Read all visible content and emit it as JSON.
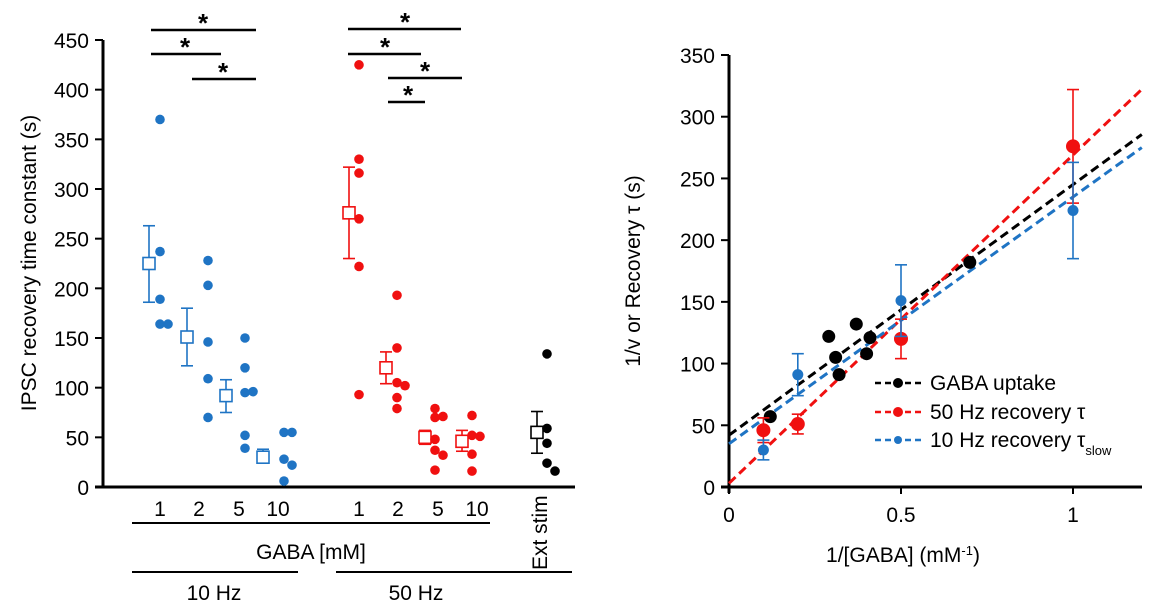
{
  "chart_data": [
    {
      "type": "scatter",
      "title": "",
      "ylabel": "IPSC recovery time constant (s)",
      "ylim": [
        0,
        450
      ],
      "yticks": [
        0,
        50,
        100,
        150,
        200,
        250,
        300,
        350,
        400,
        450
      ],
      "xlabel": "GABA [mM]",
      "group_labels": [
        "10 Hz",
        "50 Hz"
      ],
      "ext_label": "Ext stim",
      "groups": [
        {
          "name": "10 Hz",
          "color": "#1f74c4",
          "conditions": [
            {
              "label": "1",
              "mean": 225,
              "err_hi": 263,
              "err_lo": 186,
              "points": [
                370,
                237,
                189,
                164,
                164
              ]
            },
            {
              "label": "2",
              "mean": 151,
              "err_hi": 180,
              "err_lo": 122,
              "points": [
                228,
                203,
                146,
                109,
                70
              ]
            },
            {
              "label": "5",
              "mean": 92,
              "err_hi": 108,
              "err_lo": 75,
              "points": [
                150,
                120,
                95,
                96,
                52,
                39
              ]
            },
            {
              "label": "10",
              "mean": 30,
              "err_hi": 38,
              "err_lo": 24,
              "points": [
                55,
                55,
                28,
                22,
                6
              ]
            }
          ]
        },
        {
          "name": "50 Hz",
          "color": "#f01010",
          "conditions": [
            {
              "label": "1",
              "mean": 276,
              "err_hi": 322,
              "err_lo": 230,
              "points": [
                425,
                330,
                316,
                270,
                222,
                93
              ]
            },
            {
              "label": "2",
              "mean": 120,
              "err_hi": 136,
              "err_lo": 104,
              "points": [
                193,
                140,
                105,
                102,
                90,
                79
              ]
            },
            {
              "label": "5",
              "mean": 50,
              "err_hi": 57,
              "err_lo": 43,
              "points": [
                79,
                70,
                71,
                48,
                37,
                32,
                17
              ]
            },
            {
              "label": "10",
              "mean": 46,
              "err_hi": 57,
              "err_lo": 36,
              "points": [
                72,
                52,
                51,
                33,
                16
              ]
            }
          ]
        },
        {
          "name": "Ext stim",
          "color": "#000000",
          "conditions": [
            {
              "label": "Ext stim",
              "mean": 55,
              "err_hi": 76,
              "err_lo": 34,
              "points": [
                134,
                59,
                44,
                24,
                16
              ]
            }
          ]
        }
      ],
      "significance": [
        {
          "group": "10 Hz",
          "from": "1",
          "to": "10",
          "label": "*"
        },
        {
          "group": "10 Hz",
          "from": "1",
          "to": "5",
          "label": "*"
        },
        {
          "group": "10 Hz",
          "from": "2",
          "to": "10",
          "label": "*"
        },
        {
          "group": "50 Hz",
          "from": "1",
          "to": "10",
          "label": "*"
        },
        {
          "group": "50 Hz",
          "from": "1",
          "to": "5",
          "label": "*"
        },
        {
          "group": "50 Hz",
          "from": "2",
          "to": "10",
          "label": "*"
        },
        {
          "group": "50 Hz",
          "from": "2",
          "to": "5",
          "label": "*"
        }
      ]
    },
    {
      "type": "scatter",
      "title": "",
      "xlabel": "1/[GABA] (mM",
      "xlabel_sup": "-1",
      "xlabel_end": ")",
      "ylabel": "1/v or Recovery τ (s)",
      "xlim": [
        0,
        1.2
      ],
      "ylim": [
        0,
        350
      ],
      "xticks": [
        "0",
        "0.5",
        "1"
      ],
      "xtick_values": [
        0,
        0.5,
        1
      ],
      "yticks": [
        0,
        50,
        100,
        150,
        200,
        250,
        300,
        350
      ],
      "legend_position": "bottom-right",
      "series": [
        {
          "name": "GABA uptake",
          "color": "#000000",
          "fit": {
            "slope": 203,
            "intercept": 42
          },
          "points": [
            {
              "x": 0.12,
              "y": 57
            },
            {
              "x": 0.29,
              "y": 122
            },
            {
              "x": 0.31,
              "y": 105
            },
            {
              "x": 0.32,
              "y": 91
            },
            {
              "x": 0.37,
              "y": 132
            },
            {
              "x": 0.4,
              "y": 108
            },
            {
              "x": 0.41,
              "y": 121
            },
            {
              "x": 0.7,
              "y": 182
            }
          ]
        },
        {
          "name": "50 Hz recovery τ",
          "color": "#f01010",
          "fit": {
            "slope": 266,
            "intercept": 3
          },
          "points": [
            {
              "x": 0.1,
              "y": 46,
              "err": 10
            },
            {
              "x": 0.2,
              "y": 51,
              "err": 8
            },
            {
              "x": 0.5,
              "y": 120,
              "err": 16
            },
            {
              "x": 1.0,
              "y": 276,
              "err": 46
            }
          ]
        },
        {
          "name": "10 Hz recovery τ",
          "name_sub": "slow",
          "color": "#1f74c4",
          "fit": {
            "slope": 200,
            "intercept": 35
          },
          "points": [
            {
              "x": 0.1,
              "y": 30,
              "err": 8
            },
            {
              "x": 0.2,
              "y": 91,
              "err": 17
            },
            {
              "x": 0.5,
              "y": 151,
              "err": 29
            },
            {
              "x": 1.0,
              "y": 224,
              "err": 39
            }
          ]
        }
      ]
    }
  ]
}
